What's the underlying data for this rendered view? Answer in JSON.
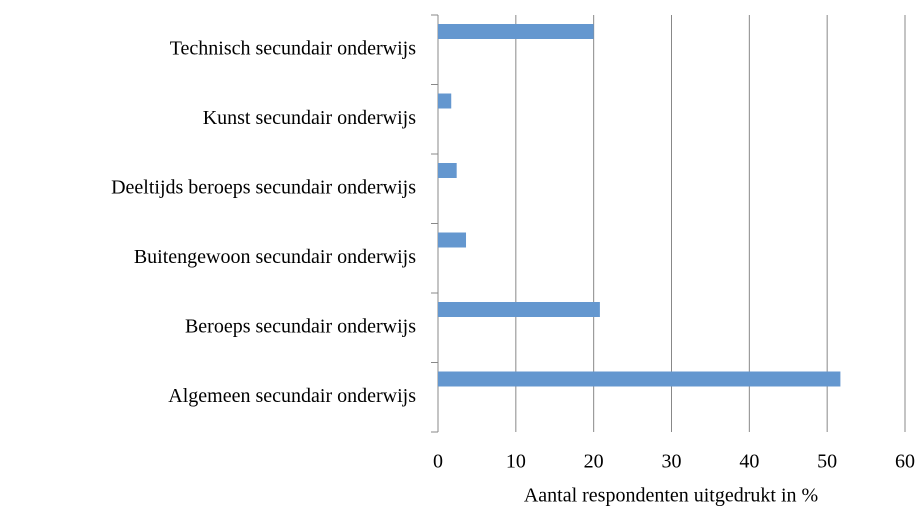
{
  "chart_data": {
    "type": "bar",
    "orientation": "horizontal",
    "x_label": "Aantal respondenten uitgedrukt in %",
    "categories": [
      "Technisch secundair onderwijs",
      "Kunst secundair onderwijs",
      "Deeltijds beroeps secundair onderwijs",
      "Buitengewoon secundair onderwijs",
      "Beroeps secundair onderwijs",
      "Algemeen secundair onderwijs"
    ],
    "values": [
      20.0,
      1.7,
      2.4,
      3.6,
      20.8,
      51.7
    ],
    "color": "#6497cf",
    "xlim": [
      0,
      60
    ],
    "xticks": [
      0,
      10,
      20,
      30,
      40,
      50,
      60
    ],
    "grid": true
  }
}
